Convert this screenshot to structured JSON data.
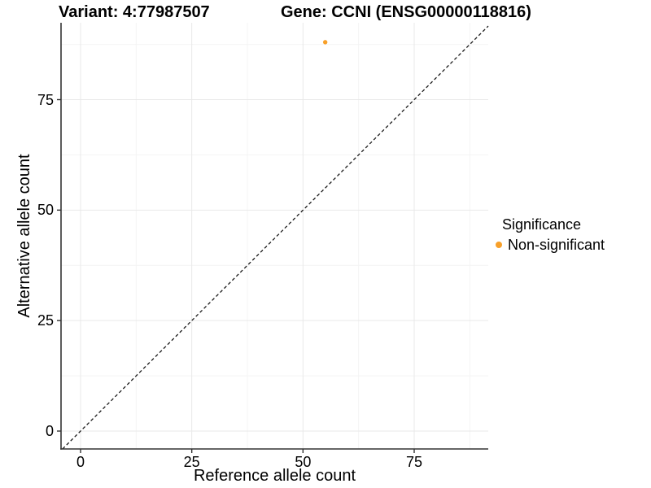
{
  "titles": {
    "variant": "Variant: 4:77987507",
    "gene": "Gene: CCNI (ENSG00000118816)"
  },
  "axes": {
    "x_label": "Reference allele count",
    "y_label": "Alternative allele count"
  },
  "legend": {
    "title": "Significance",
    "entries": [
      {
        "label": "Non-significant",
        "color": "#F8A029"
      }
    ]
  },
  "chart_data": {
    "type": "scatter",
    "title": "Variant: 4:77987507 | Gene: CCNI (ENSG00000118816)",
    "xlabel": "Reference allele count",
    "ylabel": "Alternative allele count",
    "x_ticks": [
      0,
      25,
      50,
      75
    ],
    "y_ticks": [
      0,
      25,
      50,
      75
    ],
    "xlim": [
      -4.4,
      91.7
    ],
    "ylim": [
      -4.1,
      92.4
    ],
    "grid": true,
    "legend_position": "right",
    "series": [
      {
        "name": "Non-significant",
        "color": "#F8A029",
        "points": [
          {
            "x": 55,
            "y": 88
          }
        ]
      }
    ],
    "reference_line": {
      "type": "identity",
      "slope": 1,
      "intercept": 0,
      "style": "dashed"
    }
  },
  "colors": {
    "point": "#F8A029",
    "grid_major": "#E9E9E9",
    "grid_minor": "#F4F4F4",
    "axis": "#333333",
    "dashed_line": "#1a1a1a",
    "text": "#000000"
  }
}
